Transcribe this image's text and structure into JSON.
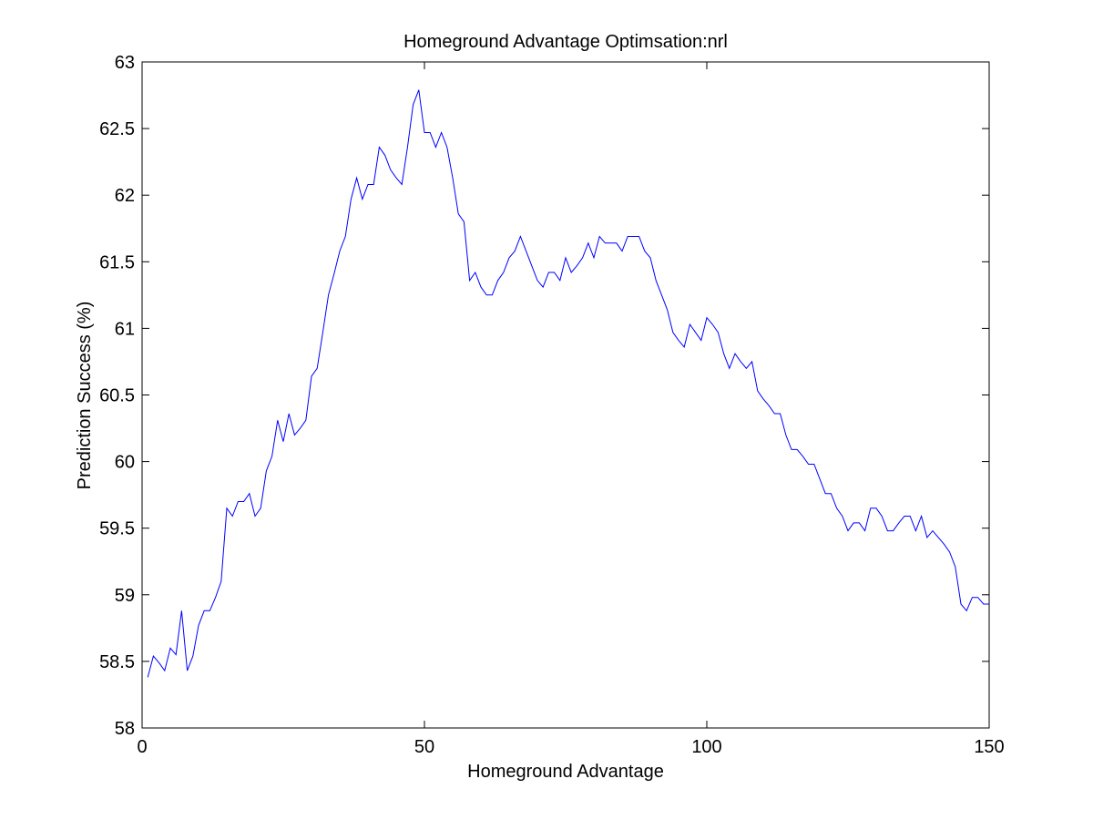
{
  "chart_data": {
    "type": "line",
    "title": "Homeground Advantage Optimsation:nrl",
    "xlabel": "Homeground Advantage",
    "ylabel": "Prediction Success (%)",
    "xlim": [
      0,
      150
    ],
    "ylim": [
      58,
      63
    ],
    "xticks": [
      0,
      50,
      100,
      150
    ],
    "xtick_labels": [
      "0",
      "50",
      "100",
      "150"
    ],
    "yticks": [
      58,
      58.5,
      59,
      59.5,
      60,
      60.5,
      61,
      61.5,
      62,
      62.5,
      63
    ],
    "ytick_labels": [
      "58",
      "58.5",
      "59",
      "59.5",
      "60",
      "60.5",
      "61",
      "61.5",
      "62",
      "62.5",
      "63"
    ],
    "grid": false,
    "series_color": "#0000ff",
    "series": [
      {
        "x": [
          1,
          2,
          3,
          4,
          5,
          6,
          7,
          8,
          9,
          10,
          11,
          12,
          13,
          14,
          15,
          16,
          17,
          18,
          19,
          20,
          21,
          22,
          23,
          24,
          25,
          26,
          27,
          28,
          29,
          30,
          31,
          32,
          33,
          34,
          35,
          36,
          37,
          38,
          39,
          40,
          41,
          42,
          43,
          44,
          45,
          46,
          47,
          48,
          49,
          50,
          51,
          52,
          53,
          54,
          55,
          56,
          57,
          58,
          59,
          60,
          61,
          62,
          63,
          64,
          65,
          66,
          67,
          68,
          69,
          70,
          71,
          72,
          73,
          74,
          75,
          76,
          77,
          78,
          79,
          80,
          81,
          82,
          83,
          84,
          85,
          86,
          87,
          88,
          89,
          90,
          91,
          92,
          93,
          94,
          95,
          96,
          97,
          98,
          99,
          100,
          101,
          102,
          103,
          104,
          105,
          106,
          107,
          108,
          109,
          110,
          111,
          112,
          113,
          114,
          115,
          116,
          117,
          118,
          119,
          120,
          121,
          122,
          123,
          124,
          125,
          126,
          127,
          128,
          129,
          130,
          131,
          132,
          133,
          134,
          135,
          136,
          137,
          138,
          139,
          140,
          141,
          142,
          143,
          144,
          145,
          146,
          147,
          148,
          149,
          150
        ],
        "values": [
          58.38,
          58.54,
          58.49,
          58.43,
          58.6,
          58.55,
          58.88,
          58.43,
          58.54,
          58.77,
          58.88,
          58.88,
          58.98,
          59.1,
          59.65,
          59.59,
          59.7,
          59.7,
          59.76,
          59.59,
          59.65,
          59.93,
          60.04,
          60.31,
          60.15,
          60.36,
          60.2,
          60.25,
          60.31,
          60.64,
          60.7,
          60.97,
          61.25,
          61.41,
          61.58,
          61.69,
          61.97,
          62.13,
          61.97,
          62.08,
          62.08,
          62.36,
          62.3,
          62.19,
          62.13,
          62.08,
          62.36,
          62.68,
          62.79,
          62.47,
          62.47,
          62.36,
          62.47,
          62.36,
          62.13,
          61.86,
          61.8,
          61.36,
          61.42,
          61.31,
          61.25,
          61.25,
          61.36,
          61.42,
          61.53,
          61.58,
          61.69,
          61.58,
          61.47,
          61.36,
          61.31,
          61.42,
          61.42,
          61.36,
          61.53,
          61.42,
          61.47,
          61.53,
          61.64,
          61.53,
          61.69,
          61.64,
          61.64,
          61.64,
          61.58,
          61.69,
          61.69,
          61.69,
          61.58,
          61.53,
          61.36,
          61.25,
          61.14,
          60.97,
          60.91,
          60.86,
          61.03,
          60.97,
          60.91,
          61.08,
          61.03,
          60.97,
          60.81,
          60.7,
          60.81,
          60.75,
          60.7,
          60.75,
          60.53,
          60.47,
          60.42,
          60.36,
          60.36,
          60.2,
          60.09,
          60.09,
          60.04,
          59.98,
          59.98,
          59.87,
          59.76,
          59.76,
          59.65,
          59.59,
          59.48,
          59.54,
          59.54,
          59.48,
          59.65,
          59.65,
          59.59,
          59.48,
          59.48,
          59.54,
          59.59,
          59.59,
          59.48,
          59.59,
          59.43,
          59.48,
          59.43,
          59.38,
          59.32,
          59.21,
          58.93,
          58.88,
          58.98,
          58.98,
          58.93,
          58.93
        ]
      }
    ]
  }
}
